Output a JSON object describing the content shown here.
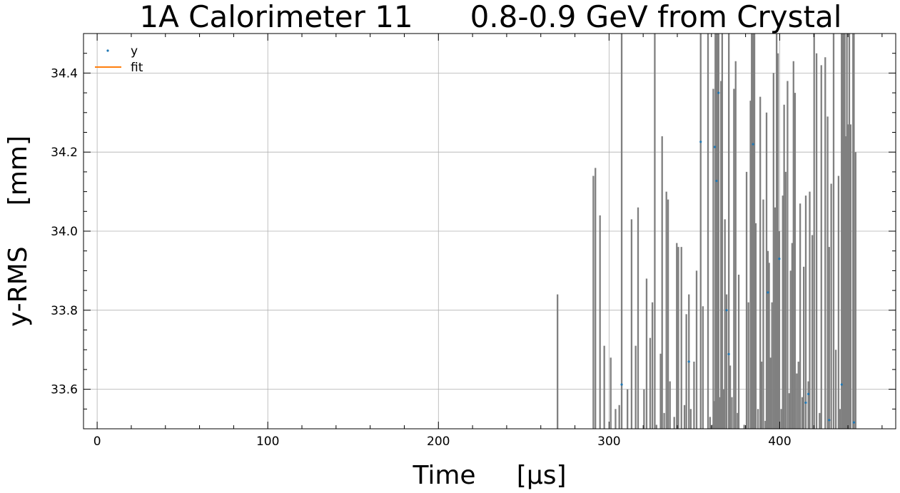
{
  "chart_data": {
    "type": "scatter",
    "title_left": "1A Calorimeter 11",
    "title_right": "0.8-0.9 GeV from Crystal",
    "xlabel": "Time     [μs]",
    "ylabel": "y-RMS     [mm]",
    "xlim": [
      -8,
      468
    ],
    "ylim": [
      33.5,
      34.5
    ],
    "x_ticks": [
      0,
      100,
      200,
      300,
      400
    ],
    "x_tick_labels": [
      "0",
      "100",
      "200",
      "300",
      "400"
    ],
    "y_ticks": [
      33.6,
      33.8,
      34.0,
      34.2,
      34.4
    ],
    "y_tick_labels": [
      "33.6",
      "33.8",
      "34.0",
      "34.2",
      "34.4"
    ],
    "grid": true,
    "legend_position": "top-left",
    "legend": [
      "y",
      "fit"
    ],
    "colors": {
      "points": "#1f77b4",
      "fit": "#ff7f0e",
      "errorbars": "#808080",
      "grid": "#b0b0b0"
    },
    "series": [
      {
        "name": "y",
        "x": [
          307.4,
          346.8,
          353.7,
          362.0,
          363.0,
          364.2,
          368.9,
          370.2,
          384.4,
          393.1,
          399.8,
          415.3,
          416.8,
          429.0,
          436.3,
          443.5
        ],
        "y": [
          33.612,
          33.67,
          34.226,
          34.213,
          34.127,
          34.35,
          33.8,
          33.689,
          34.22,
          33.845,
          33.93,
          33.566,
          33.588,
          33.522,
          33.612,
          33.516
        ]
      },
      {
        "name": "fit",
        "x": [],
        "y": []
      }
    ],
    "errorbars": [
      [
        269.8,
        33.5,
        33.84
      ],
      [
        290.8,
        33.5,
        34.14
      ],
      [
        292.0,
        33.5,
        34.16
      ],
      [
        294.7,
        33.5,
        34.04
      ],
      [
        297.2,
        33.5,
        33.71
      ],
      [
        301.0,
        33.5,
        33.68
      ],
      [
        303.8,
        33.5,
        33.55
      ],
      [
        306.0,
        33.5,
        33.56
      ],
      [
        307.4,
        33.5,
        34.5
      ],
      [
        310.8,
        33.5,
        33.6
      ],
      [
        313.2,
        33.5,
        34.03
      ],
      [
        315.6,
        33.5,
        33.71
      ],
      [
        317.0,
        33.5,
        34.06
      ],
      [
        320.5,
        33.5,
        33.6
      ],
      [
        322.0,
        33.5,
        33.88
      ],
      [
        324.1,
        33.5,
        33.73
      ],
      [
        325.4,
        33.5,
        33.82
      ],
      [
        326.8,
        33.5,
        34.5
      ],
      [
        327.8,
        33.5,
        33.51
      ],
      [
        330.2,
        33.5,
        33.69
      ],
      [
        331.1,
        33.5,
        34.24
      ],
      [
        332.3,
        33.5,
        33.54
      ],
      [
        333.6,
        33.5,
        34.1
      ],
      [
        334.6,
        33.5,
        34.08
      ],
      [
        335.7,
        33.5,
        33.62
      ],
      [
        338.2,
        33.5,
        33.53
      ],
      [
        339.7,
        33.5,
        33.97
      ],
      [
        340.6,
        33.5,
        33.96
      ],
      [
        342.4,
        33.5,
        33.96
      ],
      [
        344.2,
        33.5,
        33.56
      ],
      [
        345.3,
        33.5,
        33.79
      ],
      [
        346.8,
        33.5,
        33.84
      ],
      [
        347.9,
        33.5,
        33.55
      ],
      [
        349.8,
        33.5,
        33.67
      ],
      [
        351.3,
        33.5,
        33.9
      ],
      [
        353.7,
        33.5,
        34.5
      ],
      [
        355.0,
        33.5,
        33.81
      ],
      [
        358.0,
        33.5,
        34.5
      ],
      [
        359.2,
        33.5,
        33.53
      ],
      [
        360.4,
        33.5,
        33.51
      ],
      [
        361.1,
        33.5,
        34.36
      ],
      [
        361.7,
        33.5,
        33.57
      ],
      [
        362.3,
        33.5,
        34.5
      ],
      [
        363.0,
        33.5,
        34.5
      ],
      [
        363.6,
        33.5,
        34.5
      ],
      [
        364.2,
        33.5,
        34.5
      ],
      [
        365.0,
        33.5,
        33.58
      ],
      [
        365.6,
        33.5,
        34.38
      ],
      [
        366.3,
        33.5,
        34.5
      ],
      [
        367.2,
        33.5,
        33.6
      ],
      [
        367.9,
        33.5,
        34.03
      ],
      [
        368.9,
        33.5,
        33.84
      ],
      [
        370.2,
        33.5,
        34.5
      ],
      [
        371.0,
        33.5,
        33.66
      ],
      [
        372.0,
        33.5,
        33.58
      ],
      [
        373.2,
        33.5,
        34.36
      ],
      [
        374.2,
        33.5,
        34.43
      ],
      [
        375.3,
        33.5,
        33.54
      ],
      [
        376.0,
        33.5,
        33.89
      ],
      [
        379.2,
        33.5,
        33.51
      ],
      [
        380.6,
        33.5,
        34.15
      ],
      [
        381.7,
        33.5,
        33.82
      ],
      [
        382.9,
        33.5,
        34.33
      ],
      [
        383.6,
        33.5,
        34.5
      ],
      [
        384.4,
        33.5,
        34.5
      ],
      [
        385.2,
        33.5,
        34.5
      ],
      [
        386.0,
        33.5,
        34.02
      ],
      [
        387.3,
        33.5,
        33.55
      ],
      [
        388.6,
        33.5,
        34.34
      ],
      [
        389.4,
        33.5,
        33.67
      ],
      [
        390.4,
        33.5,
        34.08
      ],
      [
        391.6,
        33.5,
        33.52
      ],
      [
        392.3,
        33.5,
        34.3
      ],
      [
        393.1,
        33.5,
        33.95
      ],
      [
        393.8,
        33.5,
        33.92
      ],
      [
        394.6,
        33.5,
        33.68
      ],
      [
        395.5,
        33.5,
        33.82
      ],
      [
        396.4,
        33.5,
        34.4
      ],
      [
        397.3,
        33.5,
        34.06
      ],
      [
        398.2,
        33.5,
        34.5
      ],
      [
        399.0,
        33.5,
        34.45
      ],
      [
        399.8,
        33.5,
        34.0
      ],
      [
        400.9,
        33.5,
        33.55
      ],
      [
        401.8,
        33.5,
        34.09
      ],
      [
        402.6,
        33.5,
        34.32
      ],
      [
        403.5,
        33.5,
        34.15
      ],
      [
        404.6,
        33.5,
        34.38
      ],
      [
        405.6,
        33.5,
        33.59
      ],
      [
        406.4,
        33.5,
        33.9
      ],
      [
        407.3,
        33.5,
        33.97
      ],
      [
        408.1,
        33.5,
        34.43
      ],
      [
        409.0,
        33.5,
        34.35
      ],
      [
        410.0,
        33.5,
        33.64
      ],
      [
        411.0,
        33.5,
        33.67
      ],
      [
        412.0,
        33.5,
        34.07
      ],
      [
        413.2,
        33.5,
        33.58
      ],
      [
        414.1,
        33.5,
        33.91
      ],
      [
        415.3,
        33.5,
        34.09
      ],
      [
        416.8,
        33.5,
        33.62
      ],
      [
        417.6,
        33.5,
        34.1
      ],
      [
        419.1,
        33.5,
        33.99
      ],
      [
        420.2,
        33.5,
        34.5
      ],
      [
        421.6,
        33.5,
        34.45
      ],
      [
        423.4,
        33.5,
        33.54
      ],
      [
        424.4,
        33.5,
        34.42
      ],
      [
        426.7,
        33.5,
        34.44
      ],
      [
        428.1,
        33.5,
        34.29
      ],
      [
        429.0,
        33.5,
        33.96
      ],
      [
        430.2,
        33.5,
        34.12
      ],
      [
        431.6,
        33.5,
        34.5
      ],
      [
        432.9,
        33.5,
        33.7
      ],
      [
        434.5,
        33.5,
        34.14
      ],
      [
        435.4,
        33.5,
        33.55
      ],
      [
        436.3,
        33.5,
        34.5
      ],
      [
        436.9,
        33.5,
        34.5
      ],
      [
        437.5,
        33.5,
        34.5
      ],
      [
        438.1,
        33.5,
        34.5
      ],
      [
        438.7,
        33.5,
        34.24
      ],
      [
        439.4,
        33.5,
        34.5
      ],
      [
        440.0,
        33.5,
        34.27
      ],
      [
        440.8,
        33.5,
        34.5
      ],
      [
        441.6,
        33.5,
        34.27
      ],
      [
        443.0,
        33.5,
        34.5
      ],
      [
        443.5,
        33.5,
        34.5
      ],
      [
        444.5,
        33.5,
        34.2
      ]
    ]
  }
}
